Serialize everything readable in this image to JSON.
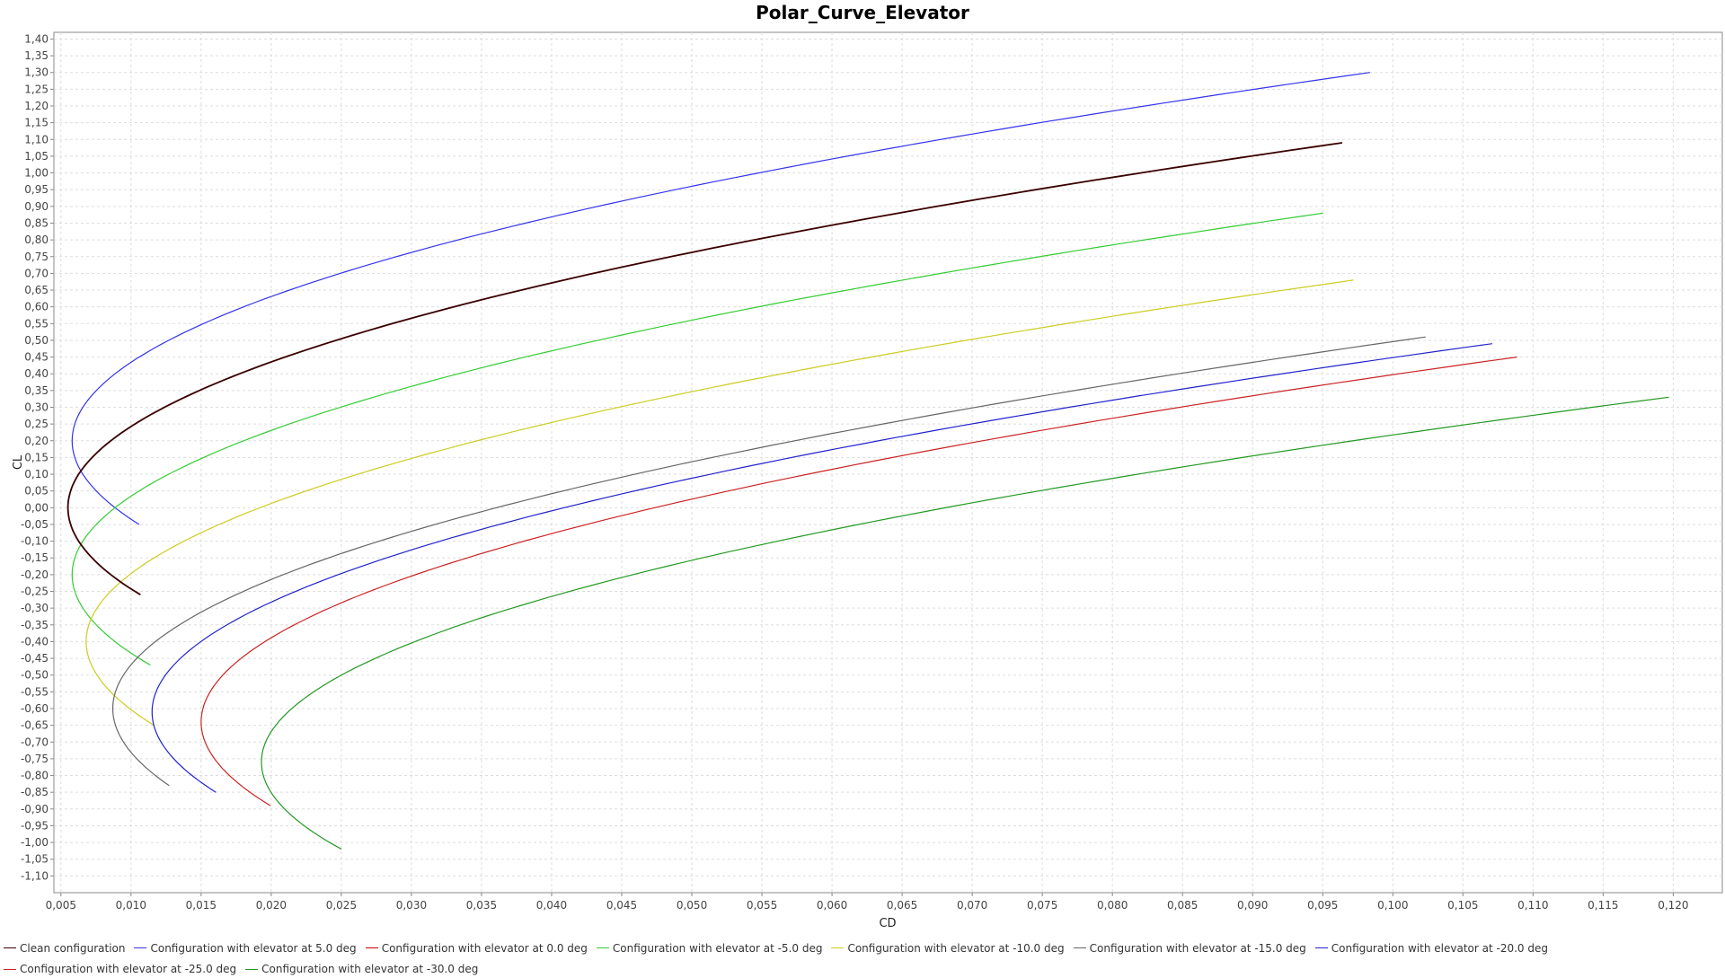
{
  "chart_data": {
    "type": "line",
    "title": "Polar_Curve_Elevator",
    "xlabel": "CD",
    "ylabel": "CL",
    "xlim": [
      0.0045,
      0.1235
    ],
    "ylim": [
      -1.15,
      1.42
    ],
    "x_ticks": [
      "0,005",
      "0,010",
      "0,015",
      "0,020",
      "0,025",
      "0,030",
      "0,035",
      "0,040",
      "0,045",
      "0,050",
      "0,055",
      "0,060",
      "0,065",
      "0,070",
      "0,075",
      "0,080",
      "0,085",
      "0,090",
      "0,095",
      "0,100",
      "0,105",
      "0,110",
      "0,115",
      "0,120"
    ],
    "y_ticks": [
      "1,40",
      "1,35",
      "1,30",
      "1,25",
      "1,20",
      "1,15",
      "1,10",
      "1,05",
      "1,00",
      "0,95",
      "0,90",
      "0,85",
      "0,80",
      "0,75",
      "0,70",
      "0,65",
      "0,60",
      "0,55",
      "0,50",
      "0,45",
      "0,40",
      "0,35",
      "0,30",
      "0,25",
      "0,20",
      "0,15",
      "0,10",
      "0,05",
      "0,00",
      "-0,05",
      "-0,10",
      "-0,15",
      "-0,20",
      "-0,25",
      "-0,30",
      "-0,35",
      "-0,40",
      "-0,45",
      "-0,50",
      "-0,55",
      "-0,60",
      "-0,65",
      "-0,70",
      "-0,75",
      "-0,80",
      "-0,85",
      "-0,90",
      "-0,95",
      "-1,00",
      "-1,05",
      "-1,10"
    ],
    "grid": true,
    "legend_position": "bottom",
    "series": [
      {
        "name": "Clean configuration",
        "color": "#3a0000",
        "cd_min": 0.0055,
        "cl_at_min": 0.0,
        "k": 0.0765,
        "cl_start": -0.26,
        "cl_end": 1.09
      },
      {
        "name": "Configuration with elevator at 5.0 deg",
        "color": "#3333ee",
        "cd_min": 0.0058,
        "cl_at_min": 0.2,
        "k": 0.0765,
        "cl_start": -0.05,
        "cl_end": 1.3
      },
      {
        "name": "Configuration with elevator at 0.0 deg",
        "color": "#cc0000",
        "cd_min": 0.0055,
        "cl_at_min": 0.0,
        "k": 0.0765,
        "cl_start": -0.26,
        "cl_end": 1.09
      },
      {
        "name": "Configuration with elevator at -5.0 deg",
        "color": "#33cc33",
        "cd_min": 0.0058,
        "cl_at_min": -0.2,
        "k": 0.0765,
        "cl_start": -0.47,
        "cl_end": 0.88
      },
      {
        "name": "Configuration with elevator at -10.0 deg",
        "color": "#cccc22",
        "cd_min": 0.0068,
        "cl_at_min": -0.4,
        "k": 0.0775,
        "cl_start": -0.65,
        "cl_end": 0.68
      },
      {
        "name": "Configuration with elevator at -15.0 deg",
        "color": "#666666",
        "cd_min": 0.0087,
        "cl_at_min": -0.6,
        "k": 0.076,
        "cl_start": -0.83,
        "cl_end": 0.51
      },
      {
        "name": "Configuration with elevator at -20.0 deg",
        "color": "#2222cc",
        "cd_min": 0.0115,
        "cl_at_min": -0.61,
        "k": 0.079,
        "cl_start": -0.85,
        "cl_end": 0.49
      },
      {
        "name": "Configuration with elevator at -25.0 deg",
        "color": "#cc2222",
        "cd_min": 0.015,
        "cl_at_min": -0.64,
        "k": 0.079,
        "cl_start": -0.89,
        "cl_end": 0.45
      },
      {
        "name": "Configuration with elevator at -30.0 deg",
        "color": "#229922",
        "cd_min": 0.0193,
        "cl_at_min": -0.76,
        "k": 0.0845,
        "cl_start": -1.02,
        "cl_end": 0.33
      }
    ]
  },
  "legend": {
    "items": [
      {
        "label": "Clean configuration",
        "color": "#3a0000"
      },
      {
        "label": "Configuration with elevator at 5.0 deg",
        "color": "#3333ee"
      },
      {
        "label": "Configuration with elevator at 0.0 deg",
        "color": "#cc0000"
      },
      {
        "label": "Configuration with elevator at -5.0 deg",
        "color": "#33cc33"
      },
      {
        "label": "Configuration with elevator at -10.0 deg",
        "color": "#cccc22"
      },
      {
        "label": "Configuration with elevator at -15.0 deg",
        "color": "#666666"
      },
      {
        "label": "Configuration with elevator at -20.0 deg",
        "color": "#2222cc"
      },
      {
        "label": "Configuration with elevator at -25.0 deg",
        "color": "#cc2222"
      },
      {
        "label": "Configuration with elevator at -30.0 deg",
        "color": "#229922"
      }
    ]
  }
}
